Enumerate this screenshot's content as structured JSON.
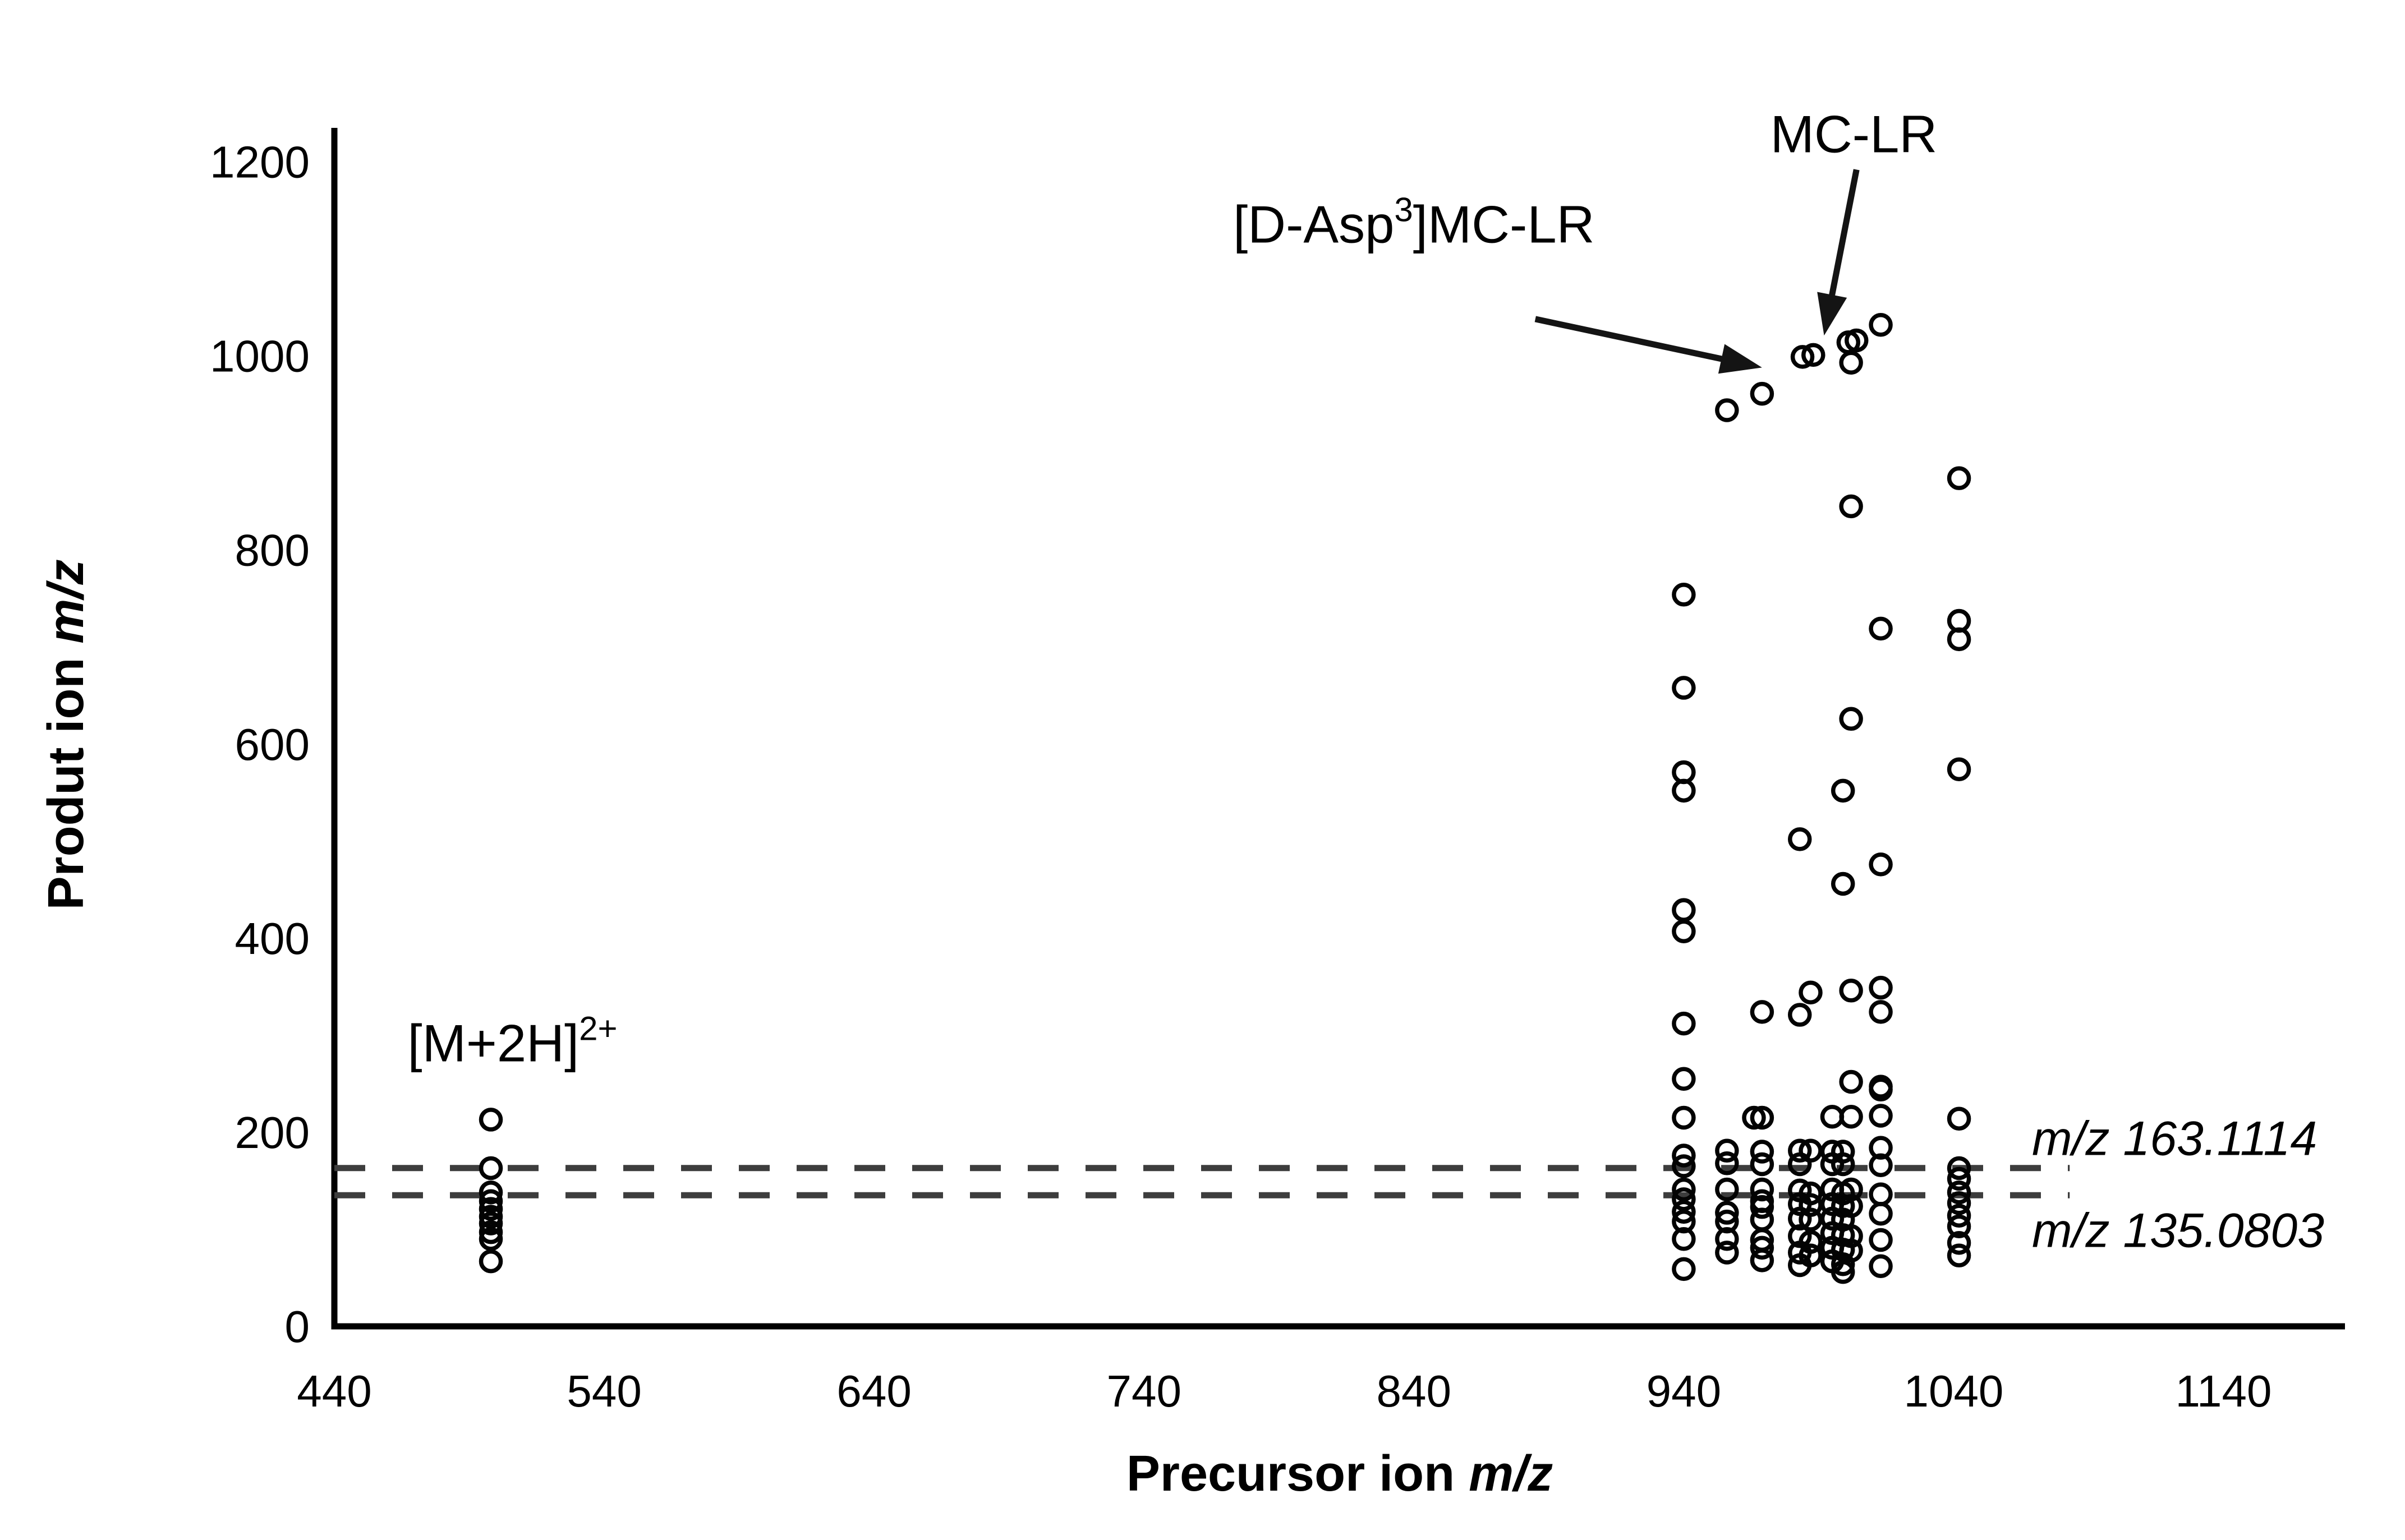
{
  "page": {
    "background_color": "#ffffff",
    "text_color": "#000000"
  },
  "chart_data": {
    "type": "scatter",
    "title": "",
    "xlabel_prefix": "Precursor ion ",
    "xlabel_italic": "m/z",
    "ylabel_prefix": "Produt ion ",
    "ylabel_italic": "m/z",
    "x_ticks": [
      440,
      540,
      640,
      740,
      840,
      940,
      1040,
      1140
    ],
    "y_ticks": [
      0,
      200,
      400,
      600,
      800,
      1000,
      1200
    ],
    "xlim": [
      440,
      1185
    ],
    "ylim": [
      0,
      1235
    ],
    "grid": false,
    "legend": false,
    "marker": {
      "shape": "open-circle",
      "color": "#030303"
    },
    "axis_color": "#000000",
    "dash_color": "#3d3d3d",
    "series": [
      {
        "precursor": 498,
        "products": [
          213,
          163,
          138,
          129,
          121,
          113,
          106,
          97,
          90,
          67
        ]
      },
      {
        "precursor": 940,
        "products": [
          754,
          658,
          571,
          552,
          429,
          407,
          312,
          255,
          215,
          176,
          165,
          141,
          131,
          118,
          108,
          90,
          59
        ]
      },
      {
        "precursor": 956,
        "products": [
          944,
          181,
          168,
          141,
          117,
          108,
          90,
          76
        ]
      },
      {
        "precursor": 966,
        "products": [
          215
        ]
      },
      {
        "precursor": 969,
        "products": [
          961,
          324,
          215,
          180,
          167,
          141,
          129,
          123,
          110,
          89,
          81,
          68
        ]
      },
      {
        "precursor": 983,
        "products": [
          502,
          321,
          181,
          167,
          140,
          126,
          111,
          93,
          76,
          63
        ]
      },
      {
        "precursor": 984,
        "products": [
          999
        ]
      },
      {
        "precursor": 987,
        "products": [
          344,
          181,
          137,
          125,
          110,
          87,
          73
        ]
      },
      {
        "precursor": 988,
        "products": [
          1001
        ]
      },
      {
        "precursor": 995,
        "products": [
          216,
          180,
          167,
          141,
          126,
          111,
          96,
          81,
          67
        ]
      },
      {
        "precursor": 999,
        "products": [
          552,
          456,
          180,
          167,
          137,
          124,
          110,
          94,
          79,
          64,
          56
        ]
      },
      {
        "precursor": 1001,
        "products": [
          1014
        ]
      },
      {
        "precursor": 1002,
        "products": [
          993,
          845,
          626,
          346,
          252,
          216,
          141,
          124,
          93,
          78
        ]
      },
      {
        "precursor": 1004,
        "products": [
          1016
        ]
      },
      {
        "precursor": 1013,
        "products": [
          1032,
          719,
          476,
          349,
          324,
          247,
          244,
          217,
          184,
          166,
          136,
          116,
          89,
          62
        ]
      },
      {
        "precursor": 1042,
        "products": [
          874,
          727,
          708,
          574,
          214,
          163,
          152,
          138,
          127,
          114,
          103,
          86,
          73
        ]
      }
    ],
    "reference_lines": [
      {
        "value": 163.1114,
        "label": "m/z 163.1114",
        "x_start": 440,
        "x_end": 1083,
        "label_x": 1069,
        "label_y": 194
      },
      {
        "value": 135.0803,
        "label": "m/z 135.0803",
        "x_start": 440,
        "x_end": 1083,
        "label_x": 1069,
        "label_y": 99
      }
    ],
    "annotations": [
      {
        "id": "mc-lr",
        "text": "MC-LR",
        "sup": "",
        "suffix": "",
        "center": {
          "x": 1003,
          "y": 1229
        },
        "arrow": {
          "from": {
            "x": 1004,
            "y": 1192
          },
          "to": {
            "x": 992,
            "y": 1021
          }
        }
      },
      {
        "id": "d-asp3-mc-lr",
        "text": "[D-Asp",
        "sup": "3",
        "suffix": "]MC-LR",
        "center": {
          "x": 840,
          "y": 1136
        },
        "arrow": {
          "from": {
            "x": 885,
            "y": 1038
          },
          "to": {
            "x": 969,
            "y": 988
          }
        }
      },
      {
        "id": "m-plus-2h",
        "text": "[M+2H]",
        "sup": "2+",
        "suffix": "",
        "center": {
          "x": 506,
          "y": 292
        },
        "arrow": null
      }
    ]
  }
}
